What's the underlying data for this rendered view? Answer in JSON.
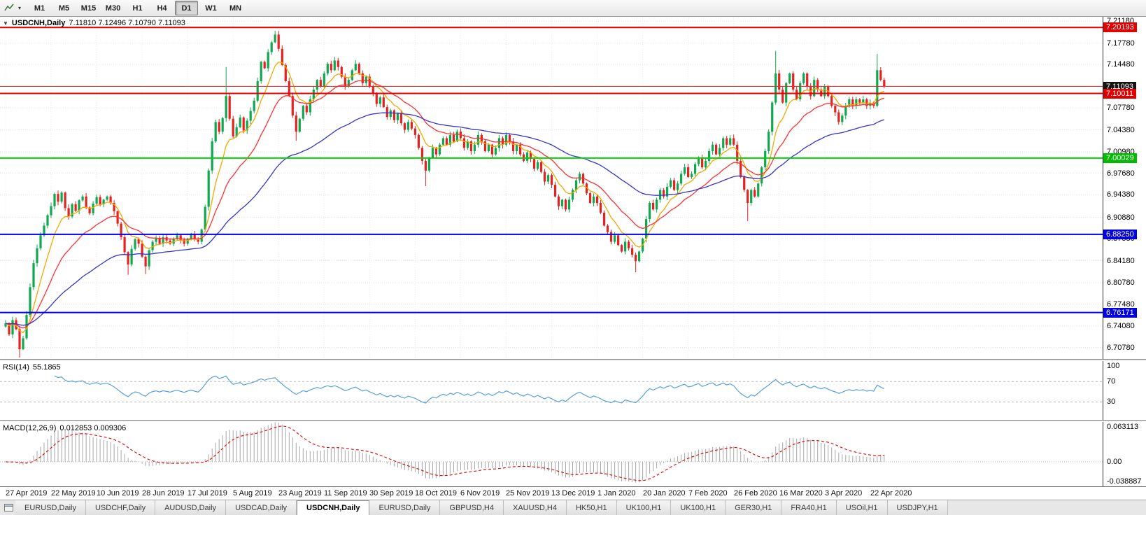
{
  "toolbar": {
    "timeframes": [
      {
        "label": "M1",
        "active": false
      },
      {
        "label": "M5",
        "active": false
      },
      {
        "label": "M15",
        "active": false
      },
      {
        "label": "M30",
        "active": false
      },
      {
        "label": "H1",
        "active": false
      },
      {
        "label": "H4",
        "active": false
      },
      {
        "label": "D1",
        "active": true
      },
      {
        "label": "W1",
        "active": false
      },
      {
        "label": "MN",
        "active": false
      }
    ]
  },
  "chart_header": {
    "collapse_icon": "▼",
    "symbol_period": "USDCNH,Daily",
    "ohlc_text": "7.11810 7.12496 7.10790 7.11093"
  },
  "chart_data": {
    "type": "candlestick",
    "symbol": "USDCNH",
    "period": "Daily",
    "ohlc_current": {
      "open": 7.1181,
      "high": 7.12496,
      "low": 7.1079,
      "close": 7.11093
    },
    "price_range": [
      6.69,
      7.2185
    ],
    "y_axis_ticks": [
      "7.21180",
      "7.17780",
      "7.14480",
      "7.07780",
      "7.04380",
      "7.00980",
      "6.97680",
      "6.94380",
      "6.90880",
      "6.87580",
      "6.84180",
      "6.80780",
      "6.77480",
      "6.74080",
      "6.70780"
    ],
    "x_labels": [
      "27 Apr 2019",
      "22 May 2019",
      "10 Jun 2019",
      "28 Jun 2019",
      "17 Jul 2019",
      "5 Aug 2019",
      "23 Aug 2019",
      "11 Sep 2019",
      "30 Sep 2019",
      "18 Oct 2019",
      "6 Nov 2019",
      "25 Nov 2019",
      "13 Dec 2019",
      "1 Jan 2020",
      "20 Jan 2020",
      "7 Feb 2020",
      "26 Feb 2020",
      "16 Mar 2020",
      "3 Apr 2020",
      "22 Apr 2020"
    ],
    "label_step": 13,
    "first_open": 6.74,
    "closes": [
      6.745,
      6.728,
      6.75,
      6.736,
      6.705,
      6.722,
      6.758,
      6.801,
      6.838,
      6.861,
      6.881,
      6.896,
      6.912,
      6.926,
      6.945,
      6.933,
      6.947,
      6.923,
      6.91,
      6.929,
      6.919,
      6.935,
      6.941,
      6.924,
      6.915,
      6.93,
      6.94,
      6.929,
      6.936,
      6.941,
      6.931,
      6.918,
      6.899,
      6.878,
      6.855,
      6.836,
      6.86,
      6.875,
      6.868,
      6.848,
      6.833,
      6.858,
      6.871,
      6.877,
      6.868,
      6.878,
      6.873,
      6.868,
      6.876,
      6.881,
      6.874,
      6.868,
      6.876,
      6.882,
      6.876,
      6.871,
      6.89,
      6.925,
      6.981,
      7.026,
      7.056,
      7.041,
      7.062,
      7.096,
      7.061,
      7.034,
      7.048,
      7.063,
      7.043,
      7.058,
      7.073,
      7.089,
      7.119,
      7.149,
      7.139,
      7.164,
      7.179,
      7.191,
      7.169,
      7.144,
      7.119,
      7.096,
      7.066,
      7.041,
      7.061,
      7.081,
      7.071,
      7.091,
      7.106,
      7.121,
      7.111,
      7.131,
      7.146,
      7.136,
      7.151,
      7.141,
      7.126,
      7.111,
      7.121,
      7.136,
      7.146,
      7.131,
      7.116,
      7.126,
      7.111,
      7.099,
      7.084,
      7.094,
      7.079,
      7.064,
      7.074,
      7.059,
      7.069,
      7.054,
      7.044,
      7.056,
      7.046,
      7.036,
      7.016,
      6.996,
      6.981,
      7.001,
      7.016,
      7.006,
      7.021,
      7.031,
      7.021,
      7.036,
      7.026,
      7.041,
      7.031,
      7.016,
      7.026,
      7.011,
      7.021,
      7.036,
      7.026,
      7.011,
      7.021,
      7.006,
      7.016,
      7.031,
      7.021,
      7.036,
      7.026,
      7.011,
      7.021,
      7.006,
      6.996,
      7.009,
      6.999,
      6.984,
      6.994,
      6.979,
      6.964,
      6.974,
      6.959,
      6.941,
      6.926,
      6.936,
      6.921,
      6.936,
      6.951,
      6.966,
      6.976,
      6.961,
      6.946,
      6.931,
      6.941,
      6.931,
      6.916,
      6.896,
      6.886,
      6.871,
      6.881,
      6.866,
      6.856,
      6.871,
      6.861,
      6.851,
      6.841,
      6.856,
      6.876,
      6.906,
      6.931,
      6.921,
      6.936,
      6.951,
      6.941,
      6.956,
      6.966,
      6.951,
      6.961,
      6.976,
      6.986,
      6.971,
      6.976,
      6.991,
      7.001,
      6.986,
      6.996,
      7.011,
      7.021,
      7.006,
      7.016,
      7.031,
      7.021,
      7.031,
      7.021,
      6.996,
      6.971,
      6.951,
      6.931,
      6.951,
      6.941,
      6.961,
      6.986,
      7.011,
      7.041,
      7.086,
      7.131,
      7.106,
      7.086,
      7.116,
      7.131,
      7.106,
      7.091,
      7.116,
      7.131,
      7.111,
      7.096,
      7.121,
      7.106,
      7.096,
      7.111,
      7.096,
      7.081,
      7.071,
      7.056,
      7.066,
      7.081,
      7.091,
      7.081,
      7.091,
      7.086,
      7.091,
      7.081,
      7.086,
      7.081,
      7.136,
      7.121,
      7.111
    ],
    "wick_overrides": [
      {
        "i": 4,
        "l": 6.692
      },
      {
        "i": 35,
        "l": 6.82
      },
      {
        "i": 40,
        "l": 6.821
      },
      {
        "i": 63,
        "h": 7.141
      },
      {
        "i": 77,
        "h": 7.197
      },
      {
        "i": 83,
        "l": 7.027
      },
      {
        "i": 120,
        "l": 6.957
      },
      {
        "i": 180,
        "l": 6.824
      },
      {
        "i": 212,
        "l": 6.903
      },
      {
        "i": 220,
        "h": 7.166
      },
      {
        "i": 249,
        "h": 7.161
      }
    ],
    "candle_up_color": "#0fa84f",
    "candle_down_color": "#e32222",
    "moving_averages": [
      {
        "name": "fast",
        "period": 8,
        "color": "#f2a800"
      },
      {
        "name": "medium",
        "period": 20,
        "color": "#ff3030"
      },
      {
        "name": "slow",
        "period": 55,
        "color": "#3434cc"
      }
    ],
    "horizontal_lines": [
      {
        "price": 7.20193,
        "label": "7.20193",
        "line_color": "#e80000",
        "line_width": 2,
        "badge_bg": "#e00000"
      },
      {
        "price": 7.11093,
        "label": "7.11093",
        "line_color": "#ff2020",
        "line_width": 1,
        "badge_bg": "#141414",
        "role": "bid"
      },
      {
        "price": 7.10011,
        "label": "7.10011",
        "line_color": "#e80000",
        "line_width": 2,
        "badge_bg": "#e00000"
      },
      {
        "price": 7.00029,
        "label": "7.00029",
        "line_color": "#00d400",
        "line_width": 2,
        "badge_bg": "#00bc00"
      },
      {
        "price": 6.8825,
        "label": "6.88250",
        "line_color": "#0000ee",
        "line_width": 2,
        "badge_bg": "#0000dd"
      },
      {
        "price": 6.76171,
        "label": "6.76171",
        "line_color": "#0000ee",
        "line_width": 2,
        "badge_bg": "#0000dd"
      }
    ],
    "indicators": {
      "rsi": {
        "label": "RSI(14)",
        "value": "55.1865",
        "period": 14,
        "levels": [
          "100",
          "70",
          "30"
        ],
        "line_color": "#56a0dd"
      },
      "macd": {
        "label": "MACD(12,26,9)",
        "value": "0.012853 0.009306",
        "fast": 12,
        "slow": 26,
        "signal": 9,
        "axis_labels": [
          "0.063113",
          "0.00",
          "-0.038887"
        ],
        "hist_color": "#a6a6a6",
        "signal_color": "#e00000"
      }
    }
  },
  "tabs": {
    "items": [
      {
        "label": "EURUSD,Daily",
        "active": false
      },
      {
        "label": "USDCHF,Daily",
        "active": false
      },
      {
        "label": "AUDUSD,Daily",
        "active": false
      },
      {
        "label": "USDCAD,Daily",
        "active": false
      },
      {
        "label": "USDCNH,Daily",
        "active": true
      },
      {
        "label": "EURUSD,Daily",
        "active": false
      },
      {
        "label": "GBPUSD,H4",
        "active": false
      },
      {
        "label": "XAUUSD,H4",
        "active": false
      },
      {
        "label": "HK50,H1",
        "active": false
      },
      {
        "label": "UK100,H1",
        "active": false
      },
      {
        "label": "UK100,H1",
        "active": false
      },
      {
        "label": "GER30,H1",
        "active": false
      },
      {
        "label": "FRA40,H1",
        "active": false
      },
      {
        "label": "USOil,H1",
        "active": false
      },
      {
        "label": "USDJPY,H1",
        "active": false
      }
    ]
  }
}
